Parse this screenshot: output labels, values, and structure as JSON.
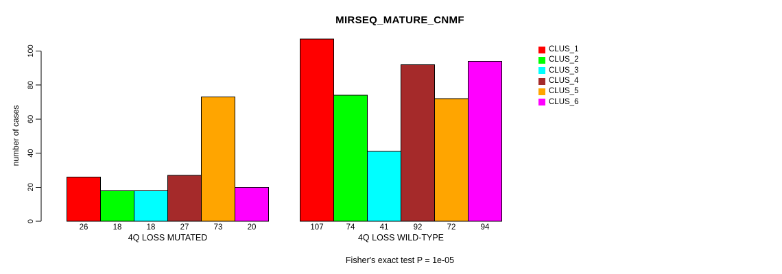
{
  "chart_data": {
    "type": "bar",
    "title": "MIRSEQ_MATURE_CNMF",
    "ylabel": "number of cases",
    "xlabel": "",
    "yticks": [
      0,
      20,
      40,
      60,
      80,
      100
    ],
    "axis_range": [
      0,
      100
    ],
    "grid": false,
    "legend_position": "right",
    "bar_value_labels_shown": true,
    "series": [
      "CLUS_1",
      "CLUS_2",
      "CLUS_3",
      "CLUS_4",
      "CLUS_5",
      "CLUS_6"
    ],
    "colors": [
      "#ff0000",
      "#00ff00",
      "#00ffff",
      "#a52a2a",
      "#ffa500",
      "#ff00ff"
    ],
    "groups": [
      {
        "label": "4Q LOSS MUTATED",
        "values": [
          26,
          18,
          18,
          27,
          73,
          20
        ]
      },
      {
        "label": "4Q LOSS WILD-TYPE",
        "values": [
          107,
          74,
          41,
          92,
          72,
          94
        ]
      }
    ],
    "annotation": "Fisher's exact test P = 1e-05"
  }
}
